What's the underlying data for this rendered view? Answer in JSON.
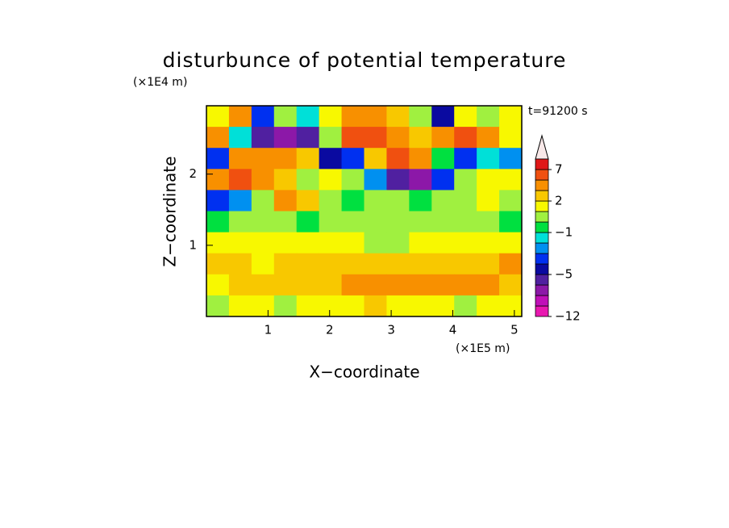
{
  "chart_data": {
    "type": "contour",
    "title": "disturbunce of potential temperature",
    "time_label": "t=91200 s",
    "x_label": "X−coordinate",
    "y_label": "Z−coordinate",
    "x_unit": "(×1E5 m)",
    "y_unit": "(×1E4 m)",
    "xlim": [
      0,
      5.12
    ],
    "ylim": [
      0,
      2.96
    ],
    "xticks": [
      1,
      2,
      3,
      4,
      5
    ],
    "yticks": [
      1,
      2
    ],
    "z": [
      [
        1,
        3,
        -4,
        0,
        -2,
        1,
        3,
        4,
        2,
        0,
        -5,
        1,
        0,
        1
      ],
      [
        3,
        -2,
        -6,
        -7,
        -6,
        0,
        5,
        6,
        3,
        2,
        4,
        5,
        3,
        1
      ],
      [
        -4,
        3,
        4,
        3,
        2,
        -5,
        -4,
        2,
        5,
        3,
        -1,
        -4,
        -2,
        -3
      ],
      [
        4,
        5,
        3,
        2,
        0,
        1,
        0,
        -3,
        -6,
        -7,
        -4,
        0,
        1,
        1
      ],
      [
        -4,
        -3,
        0,
        3,
        2,
        0,
        -1,
        0,
        0,
        -1,
        0,
        0,
        1,
        0
      ],
      [
        -1,
        0,
        0,
        0,
        -1,
        0,
        0,
        0,
        0,
        0,
        0,
        0,
        0,
        -1
      ],
      [
        1,
        1,
        1,
        1,
        1,
        1,
        1,
        0,
        0,
        1,
        1,
        1,
        1,
        1
      ],
      [
        2,
        2,
        1,
        2,
        2,
        2,
        2,
        2,
        2,
        2,
        2,
        2,
        2,
        3
      ],
      [
        1,
        2,
        2,
        2,
        2,
        2,
        3,
        3,
        3,
        4,
        4,
        3,
        3,
        2
      ],
      [
        0,
        1,
        1,
        0,
        1,
        1,
        1,
        2,
        1,
        1,
        1,
        0,
        1,
        1
      ]
    ],
    "levels": [
      -12,
      -10,
      -8,
      -6,
      -5,
      -4,
      -3,
      -2,
      -1,
      0,
      1,
      2,
      3,
      5,
      7,
      9
    ],
    "colors": [
      "#e818b0",
      "#c010b8",
      "#8c18a8",
      "#5020a0",
      "#0a0aa0",
      "#0030f0",
      "#0090f0",
      "#00e0d8",
      "#00e040",
      "#a0f040",
      "#f8f800",
      "#f8c800",
      "#f89000",
      "#f05010",
      "#e01818"
    ],
    "colorbar_ticks": [
      {
        "value": 7,
        "label": "7"
      },
      {
        "value": 2,
        "label": "2"
      },
      {
        "value": -1,
        "label": "−1"
      },
      {
        "value": -5,
        "label": "−5"
      },
      {
        "value": -12,
        "label": "−12"
      }
    ]
  }
}
